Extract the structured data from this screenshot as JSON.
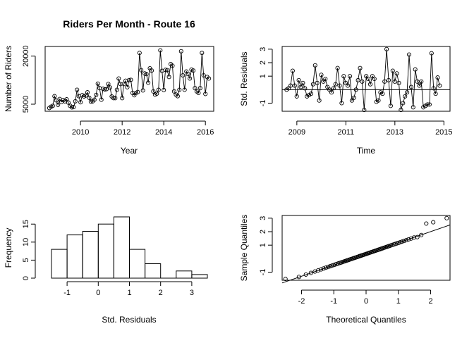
{
  "chart_data": [
    {
      "type": "line",
      "title": "Riders Per Month - Route 16",
      "xlabel": "Year",
      "ylabel": "Number of Riders",
      "xlim": [
        2008.3,
        2016.4
      ],
      "ylim": [
        2800,
        23000
      ],
      "x_ticks": [
        2010,
        2012,
        2014,
        2016
      ],
      "x_tick_labels": [
        "2010",
        "2012",
        "2014",
        "2016"
      ],
      "y_ticks": [
        5000,
        20000
      ],
      "y_tick_labels": [
        "5000",
        "20000"
      ],
      "grid": false,
      "point_marker": "open-circle",
      "start": 2008.5,
      "step": 0.0833333,
      "values": [
        3800,
        4200,
        4500,
        7500,
        6200,
        4800,
        6600,
        5700,
        6300,
        5900,
        6500,
        5500,
        4500,
        4000,
        4100,
        5900,
        9500,
        7500,
        5600,
        7800,
        7400,
        7700,
        8700,
        7000,
        5800,
        5900,
        6400,
        7900,
        11400,
        10000,
        6400,
        9800,
        9600,
        9700,
        11300,
        10200,
        7400,
        6900,
        6900,
        9500,
        13000,
        11300,
        6900,
        11300,
        12300,
        10300,
        12500,
        12600,
        8500,
        7800,
        8500,
        8800,
        21000,
        15600,
        9300,
        14600,
        14400,
        11700,
        16200,
        15500,
        9000,
        8000,
        8300,
        9500,
        21800,
        15400,
        9400,
        15700,
        15600,
        13500,
        17500,
        17000,
        9000,
        8000,
        7500,
        9500,
        21500,
        14000,
        9500,
        15200,
        14400,
        13000,
        15800,
        15500,
        10000,
        9000,
        8500,
        10000,
        21000,
        14000,
        8200,
        13500,
        13000
      ]
    },
    {
      "type": "line",
      "title": "",
      "xlabel": "Time",
      "ylabel": "Std. Residuals",
      "xlim": [
        2008.4,
        2015.25
      ],
      "ylim": [
        -1.6,
        3.2
      ],
      "x_ticks": [
        2009,
        2011,
        2013,
        2015
      ],
      "x_tick_labels": [
        "2009",
        "2011",
        "2013",
        "2015"
      ],
      "y_ticks": [
        -1,
        1,
        2,
        3
      ],
      "y_tick_labels": [
        "-1",
        "1",
        "2",
        "3"
      ],
      "reference_line": 0,
      "grid": false,
      "point_marker": "open-circle",
      "start": 2008.58,
      "step": 0.0833333,
      "values": [
        0.0,
        0.1,
        0.3,
        1.4,
        0.3,
        -0.5,
        0.7,
        0.2,
        0.5,
        0.1,
        -0.5,
        -0.4,
        -0.3,
        0.4,
        1.8,
        0.5,
        -0.8,
        1.1,
        0.6,
        0.8,
        0.2,
        0.0,
        -0.2,
        0.1,
        0.4,
        1.6,
        0.3,
        -1.0,
        1.0,
        0.5,
        0.3,
        1.0,
        -0.8,
        -0.6,
        0.0,
        0.7,
        1.6,
        0.6,
        -1.5,
        1.0,
        0.8,
        0.4,
        1.0,
        0.8,
        -0.9,
        -0.8,
        -0.2,
        -0.3,
        0.6,
        3.0,
        0.7,
        -1.2,
        1.4,
        0.6,
        1.2,
        0.5,
        -1.5,
        -1.0,
        -0.5,
        -0.2,
        2.6,
        0.2,
        -1.3,
        1.5,
        0.6,
        0.3,
        0.6,
        -1.3,
        -1.2,
        -1.1,
        -1.1,
        2.7,
        0.1,
        -0.3,
        0.9,
        0.3
      ]
    },
    {
      "type": "bar",
      "title": "",
      "xlabel": "Std. Residuals",
      "ylabel": "Frequency",
      "bin_edges": [
        -1.5,
        -1,
        -0.5,
        0,
        0.5,
        1,
        1.5,
        2,
        2.5,
        3,
        3.5
      ],
      "values": [
        8,
        12,
        13,
        15,
        17,
        8,
        4,
        0,
        2,
        1
      ],
      "xlim": [
        -1.5,
        3.5
      ],
      "ylim": [
        0,
        17
      ],
      "x_ticks": [
        -1,
        0,
        1,
        2,
        3
      ],
      "x_tick_labels": [
        "-1",
        "0",
        "1",
        "2",
        "3"
      ],
      "y_ticks": [
        0,
        5,
        10,
        15
      ],
      "y_tick_labels": [
        "0",
        "5",
        "10",
        "15"
      ],
      "grid": false
    },
    {
      "type": "scatter",
      "title": "",
      "xlabel": "Theoretical Quantiles",
      "ylabel": "Sample Quantiles",
      "xlim": [
        -2.6,
        2.6
      ],
      "ylim": [
        -1.6,
        3.2
      ],
      "x_ticks": [
        -2,
        -1,
        0,
        1,
        2
      ],
      "x_tick_labels": [
        "-2",
        "-1",
        "0",
        "1",
        "2"
      ],
      "y_ticks": [
        -1,
        1,
        2,
        3
      ],
      "y_tick_labels": [
        "-1",
        "1",
        "2",
        "3"
      ],
      "reference_line": {
        "x1": -2.6,
        "y1": -1.8,
        "x2": 2.6,
        "y2": 2.5
      },
      "grid": false,
      "point_marker": "open-circle",
      "n_points": 80
    }
  ]
}
